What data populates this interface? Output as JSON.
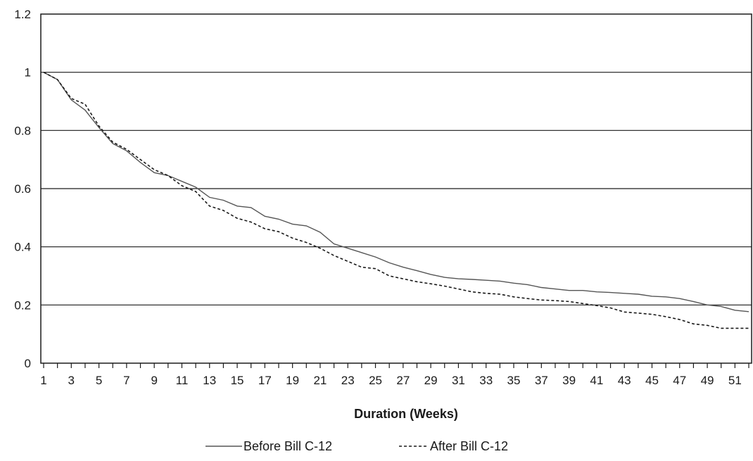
{
  "chart_data": {
    "type": "line",
    "title": "",
    "xlabel": "Duration (Weeks)",
    "ylabel": "",
    "x": [
      1,
      2,
      3,
      4,
      5,
      6,
      7,
      8,
      9,
      10,
      11,
      12,
      13,
      14,
      15,
      16,
      17,
      18,
      19,
      20,
      21,
      22,
      23,
      24,
      25,
      26,
      27,
      28,
      29,
      30,
      31,
      32,
      33,
      34,
      35,
      36,
      37,
      38,
      39,
      40,
      41,
      42,
      43,
      44,
      45,
      46,
      47,
      48,
      49,
      50,
      51,
      52
    ],
    "xtick_labels": [
      "1",
      "3",
      "5",
      "7",
      "9",
      "11",
      "13",
      "15",
      "17",
      "19",
      "21",
      "23",
      "25",
      "27",
      "29",
      "31",
      "33",
      "35",
      "37",
      "39",
      "41",
      "43",
      "45",
      "47",
      "49",
      "51"
    ],
    "xlim": [
      1,
      52
    ],
    "ylim": [
      0,
      1.2
    ],
    "yticks": [
      0,
      0.2,
      0.4,
      0.6,
      0.8,
      1,
      1.2
    ],
    "ytick_labels": [
      "0",
      "0.2",
      "0.4",
      "0.6",
      "0.8",
      "1",
      "1.2"
    ],
    "grid": true,
    "legend_position": "bottom-center",
    "series": [
      {
        "name": "Before Bill C-12",
        "style": "solid",
        "color": "#555555",
        "values": [
          1.0,
          0.975,
          0.905,
          0.87,
          0.81,
          0.755,
          0.73,
          0.69,
          0.655,
          0.645,
          0.625,
          0.605,
          0.57,
          0.56,
          0.54,
          0.535,
          0.505,
          0.495,
          0.478,
          0.472,
          0.45,
          0.41,
          0.395,
          0.38,
          0.365,
          0.345,
          0.33,
          0.318,
          0.305,
          0.295,
          0.29,
          0.288,
          0.285,
          0.282,
          0.275,
          0.27,
          0.26,
          0.255,
          0.25,
          0.25,
          0.245,
          0.243,
          0.24,
          0.237,
          0.23,
          0.228,
          0.222,
          0.212,
          0.2,
          0.195,
          0.182,
          0.177
        ]
      },
      {
        "name": "After Bill C-12",
        "style": "dashed",
        "color": "#1a1a1a",
        "values": [
          1.0,
          0.975,
          0.91,
          0.89,
          0.815,
          0.76,
          0.735,
          0.7,
          0.665,
          0.645,
          0.61,
          0.59,
          0.54,
          0.525,
          0.498,
          0.485,
          0.462,
          0.452,
          0.43,
          0.415,
          0.395,
          0.37,
          0.35,
          0.33,
          0.325,
          0.3,
          0.29,
          0.28,
          0.273,
          0.265,
          0.255,
          0.245,
          0.24,
          0.237,
          0.228,
          0.222,
          0.217,
          0.215,
          0.212,
          0.205,
          0.198,
          0.19,
          0.176,
          0.172,
          0.168,
          0.16,
          0.15,
          0.135,
          0.13,
          0.12,
          0.12,
          0.12
        ]
      }
    ]
  }
}
